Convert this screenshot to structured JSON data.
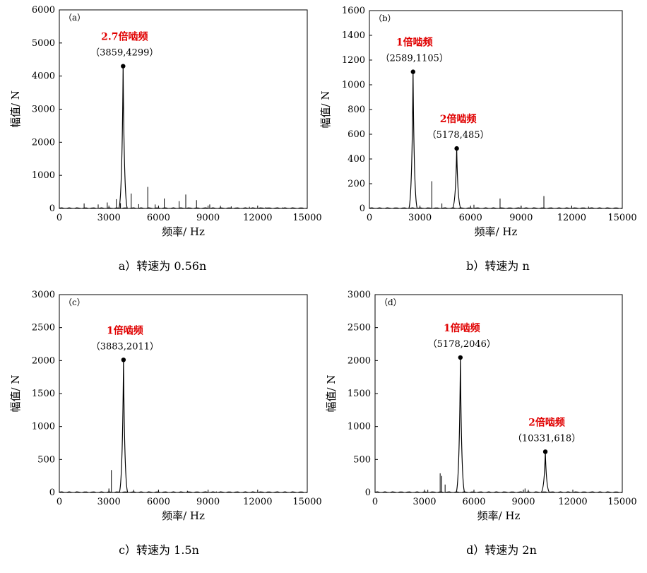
{
  "chart_data": [
    {
      "type": "line",
      "panel_label": "（a）",
      "caption": "a）转速为 0.56n",
      "xlabel": "频率/ Hz",
      "ylabel": "幅值/ N",
      "xlim": [
        0,
        15000
      ],
      "ylim": [
        0,
        6000
      ],
      "xticks": [
        "0",
        "3000",
        "6000",
        "9000",
        "12000",
        "15000"
      ],
      "yticks": [
        "0",
        "1000",
        "2000",
        "3000",
        "4000",
        "5000",
        "6000"
      ],
      "peak": [
        3859,
        4299
      ],
      "annotations": [
        {
          "name": "2.7倍啮频",
          "coord_label": "（3859,4299）",
          "x": 3859,
          "y": 4299
        }
      ],
      "spikes": [
        [
          1500,
          150
        ],
        [
          2350,
          120
        ],
        [
          2900,
          180
        ],
        [
          3450,
          280
        ],
        [
          3700,
          160
        ],
        [
          4350,
          450
        ],
        [
          4800,
          130
        ],
        [
          5350,
          650
        ],
        [
          5800,
          120
        ],
        [
          6350,
          300
        ],
        [
          7250,
          220
        ],
        [
          7650,
          420
        ],
        [
          8300,
          250
        ],
        [
          9100,
          120
        ],
        [
          9750,
          80
        ],
        [
          10400,
          60
        ],
        [
          11500,
          50
        ],
        [
          12500,
          40
        ],
        [
          13500,
          30
        ],
        [
          14200,
          20
        ]
      ]
    },
    {
      "type": "line",
      "panel_label": "（b）",
      "caption": "b）转速为 n",
      "xlabel": "频率/ Hz",
      "ylabel": "幅值/ N",
      "xlim": [
        0,
        15000
      ],
      "ylim": [
        0,
        1600
      ],
      "xticks": [
        "0",
        "3000",
        "6000",
        "9000",
        "12000",
        "15000"
      ],
      "yticks": [
        "0",
        "200",
        "400",
        "600",
        "800",
        "1000",
        "1200",
        "1400",
        "1600"
      ],
      "peak": [
        2589,
        1105
      ],
      "annotations": [
        {
          "name": "1倍啮频",
          "coord_label": "（2589,1105）",
          "x": 2589,
          "y": 1105
        },
        {
          "name": "2倍啮频",
          "coord_label": "（5178,485）",
          "x": 5178,
          "y": 485
        }
      ],
      "spikes": [
        [
          3700,
          220
        ],
        [
          4300,
          40
        ],
        [
          6200,
          30
        ],
        [
          7750,
          80
        ],
        [
          9000,
          20
        ],
        [
          10350,
          100
        ],
        [
          12000,
          20
        ],
        [
          13000,
          15
        ]
      ]
    },
    {
      "type": "line",
      "panel_label": "（c）",
      "caption": "c）转速为 1.5n",
      "xlabel": "频率/ Hz",
      "ylabel": "幅值/ N",
      "xlim": [
        0,
        15000
      ],
      "ylim": [
        0,
        3000
      ],
      "xticks": [
        "0",
        "3000",
        "6000",
        "9000",
        "12000",
        "15000"
      ],
      "yticks": [
        "0",
        "500",
        "1000",
        "1500",
        "2000",
        "2500",
        "3000"
      ],
      "peak": [
        3883,
        2011
      ],
      "annotations": [
        {
          "name": "1倍啮频",
          "coord_label": "（3883,2011）",
          "x": 3883,
          "y": 2011
        }
      ],
      "spikes": [
        [
          3150,
          340
        ],
        [
          3000,
          60
        ],
        [
          4500,
          40
        ],
        [
          6000,
          30
        ],
        [
          7750,
          25
        ],
        [
          9500,
          15
        ]
      ]
    },
    {
      "type": "line",
      "panel_label": "（d）",
      "caption": "d）转速为 2n",
      "xlabel": "频率/ Hz",
      "ylabel": "幅值/ N",
      "xlim": [
        0,
        15000
      ],
      "ylim": [
        0,
        3000
      ],
      "xticks": [
        "0",
        "3000",
        "6000",
        "9000",
        "12000",
        "15000"
      ],
      "yticks": [
        "0",
        "500",
        "1000",
        "1500",
        "2000",
        "2500",
        "3000"
      ],
      "peak": [
        5178,
        2046
      ],
      "annotations": [
        {
          "name": "1倍啮频",
          "coord_label": "（5178,2046）",
          "x": 5178,
          "y": 2046
        },
        {
          "name": "2倍啮频",
          "coord_label": "（10331,618）",
          "x": 10331,
          "y": 618
        }
      ],
      "spikes": [
        [
          3950,
          290
        ],
        [
          4050,
          250
        ],
        [
          4250,
          120
        ],
        [
          3200,
          40
        ],
        [
          9100,
          60
        ],
        [
          9300,
          40
        ],
        [
          12000,
          20
        ]
      ]
    }
  ]
}
